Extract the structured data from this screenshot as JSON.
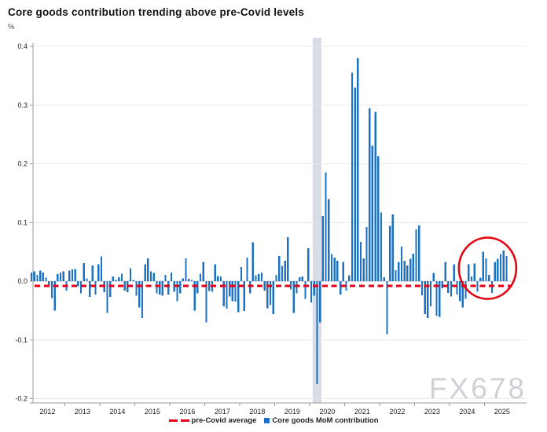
{
  "header": {
    "title": "Core goods contribution trending above pre-Covid levels",
    "unit": "%"
  },
  "watermark": "FX678",
  "legend": [
    {
      "label": "pre-Covid average",
      "swatch": "dash",
      "color": "#e30018"
    },
    {
      "label": "Core goods MoM contribution",
      "swatch": "square",
      "color": "#1b72c4"
    }
  ],
  "chart_data": {
    "type": "bar",
    "title": "Core goods contribution trending above pre-Covid levels",
    "ylabel": "%",
    "start_month": "2012-01",
    "end_month": "2025-08",
    "frequency": "monthly",
    "x_tick_labels": [
      "2012",
      "2013",
      "2014",
      "2015",
      "2016",
      "2017",
      "2018",
      "2019",
      "2020",
      "2021",
      "2022",
      "2023",
      "2024",
      "2025"
    ],
    "y_tick_labels": [
      "0.4",
      "0.3",
      "0.2",
      "0.1",
      "0.0",
      "-0.1",
      "-0.2"
    ],
    "y_ticks": [
      0.4,
      0.3,
      0.2,
      0.1,
      0.0,
      -0.1,
      -0.2
    ],
    "ylim": [
      -0.21,
      0.41
    ],
    "grid": true,
    "legend_position": "bottom",
    "pre_covid_average": -0.008,
    "recession_band": {
      "from": "2020-02",
      "to": "2020-04"
    },
    "annotation_circle": {
      "around_months": "2024-08 to 2025-08",
      "center_month_index": 156.5,
      "center_value": 0.022
    },
    "series": [
      {
        "name": "Core goods MoM contribution",
        "color": "#1b72c4",
        "values": [
          0.015,
          0.017,
          0.011,
          0.018,
          0.015,
          0.006,
          -0.007,
          -0.029,
          -0.05,
          0.012,
          0.015,
          0.017,
          -0.016,
          0.018,
          0.02,
          0.021,
          -0.009,
          -0.021,
          0.031,
          0.005,
          -0.027,
          0.027,
          -0.023,
          0.029,
          0.042,
          -0.019,
          -0.054,
          -0.027,
          0.008,
          0.003,
          0.007,
          0.013,
          -0.016,
          -0.019,
          0.022,
          0.002,
          -0.025,
          -0.045,
          -0.063,
          0.029,
          0.039,
          0.017,
          0.014,
          -0.021,
          -0.023,
          -0.025,
          0.011,
          -0.023,
          0.015,
          -0.018,
          -0.034,
          -0.021,
          0.005,
          0.039,
          0.004,
          0.002,
          -0.05,
          -0.021,
          0.013,
          0.033,
          -0.07,
          -0.017,
          -0.018,
          0.029,
          0.009,
          0.008,
          -0.043,
          -0.047,
          -0.026,
          -0.034,
          -0.035,
          -0.053,
          0.024,
          -0.051,
          0.04,
          -0.021,
          0.066,
          0.01,
          0.012,
          0.015,
          -0.016,
          -0.046,
          -0.041,
          -0.056,
          0.011,
          0.043,
          0.026,
          0.035,
          0.075,
          -0.014,
          -0.054,
          -0.021,
          0.007,
          0.008,
          -0.03,
          0.056,
          -0.036,
          -0.025,
          -0.175,
          -0.07,
          0.111,
          0.185,
          0.14,
          0.046,
          0.04,
          0.035,
          -0.023,
          0.033,
          -0.016,
          0.01,
          0.355,
          0.33,
          0.38,
          0.067,
          0.039,
          0.092,
          0.294,
          0.231,
          0.288,
          0.213,
          0.117,
          0.007,
          -0.09,
          0.094,
          0.114,
          0.019,
          0.033,
          0.059,
          0.035,
          0.027,
          0.038,
          0.047,
          0.088,
          0.095,
          -0.024,
          -0.056,
          -0.063,
          -0.043,
          0.014,
          -0.059,
          -0.061,
          -0.012,
          0.033,
          -0.02,
          -0.026,
          0.029,
          -0.023,
          -0.034,
          -0.045,
          -0.03,
          0.029,
          0.008,
          0.03,
          -0.018,
          0.006,
          0.05,
          0.039,
          0.011,
          -0.02,
          0.033,
          0.038,
          0.046,
          0.052,
          0.043
        ]
      }
    ],
    "colors": {
      "bar": "#1b72c4",
      "pre_covid_average_line": "#e30018",
      "recession_band": "#d9dce4",
      "annotation_circle": "#e30613",
      "gridline": "#e9e9e9",
      "axis": "#9a9a9a",
      "zero_line": "#c8c8c8"
    }
  }
}
